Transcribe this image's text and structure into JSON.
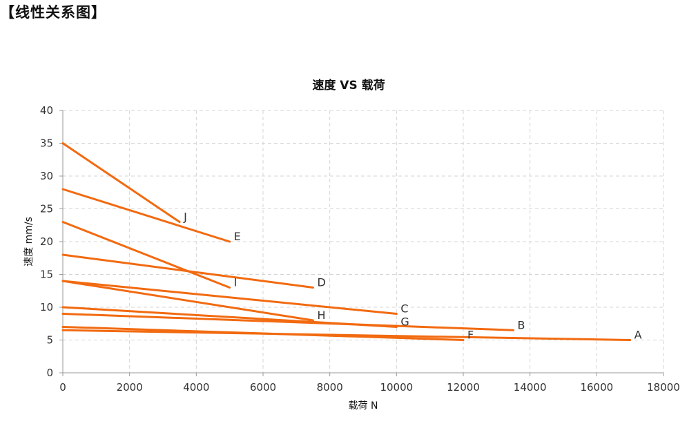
{
  "heading": "【线性关系图】",
  "chart_data": {
    "type": "line",
    "title": "速度 VS 载荷",
    "xlabel": "载荷 N",
    "ylabel": "速度 mm/s",
    "xlim": [
      0,
      18000
    ],
    "ylim": [
      0,
      40
    ],
    "xticks": [
      "0",
      "2000",
      "4000",
      "6000",
      "8000",
      "10000",
      "12000",
      "14000",
      "16000",
      "18000"
    ],
    "yticks": [
      "0",
      "5",
      "10",
      "15",
      "20",
      "25",
      "30",
      "35",
      "40"
    ],
    "grid": true,
    "line_color": "#f26a10",
    "series": [
      {
        "name": "A",
        "x": [
          0,
          17000
        ],
        "y": [
          6.5,
          5
        ]
      },
      {
        "name": "B",
        "x": [
          0,
          13500
        ],
        "y": [
          9,
          6.5
        ]
      },
      {
        "name": "C",
        "x": [
          0,
          10000
        ],
        "y": [
          14,
          9
        ]
      },
      {
        "name": "D",
        "x": [
          0,
          7500
        ],
        "y": [
          18,
          13
        ]
      },
      {
        "name": "E",
        "x": [
          0,
          5000
        ],
        "y": [
          28,
          20
        ]
      },
      {
        "name": "F",
        "x": [
          0,
          12000
        ],
        "y": [
          7,
          5
        ]
      },
      {
        "name": "G",
        "x": [
          0,
          10000
        ],
        "y": [
          10,
          7
        ]
      },
      {
        "name": "H",
        "x": [
          0,
          7500
        ],
        "y": [
          14,
          8
        ]
      },
      {
        "name": "I",
        "x": [
          0,
          5000
        ],
        "y": [
          23,
          13
        ]
      },
      {
        "name": "J",
        "x": [
          0,
          3500
        ],
        "y": [
          35,
          23
        ]
      }
    ]
  }
}
